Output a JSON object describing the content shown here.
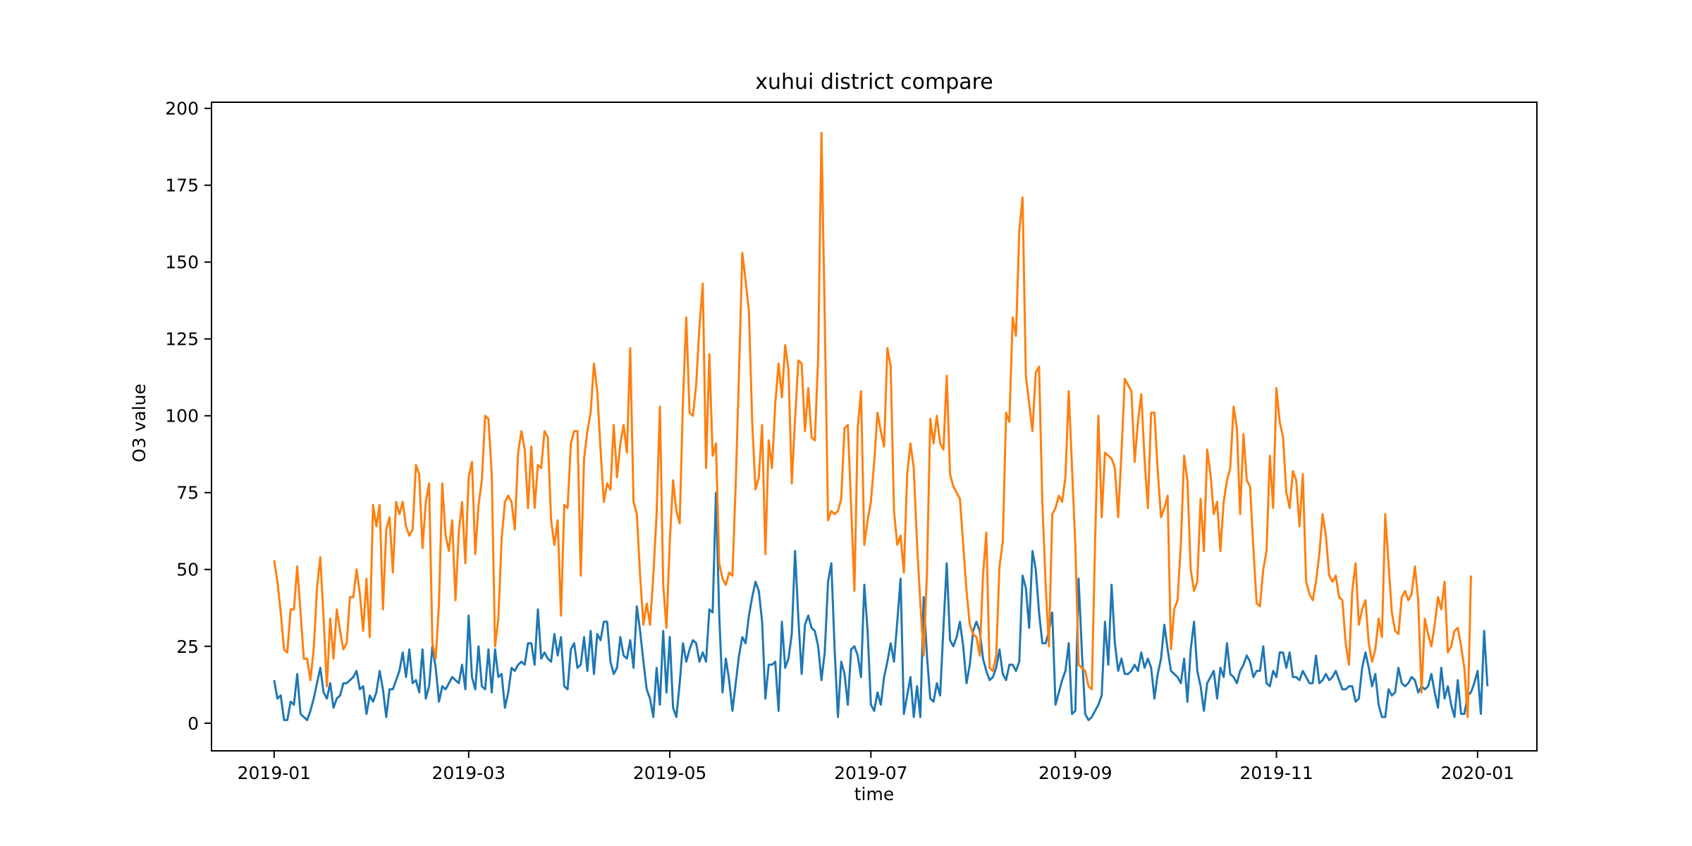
{
  "chart_data": {
    "type": "line",
    "title": "xuhui district compare",
    "xlabel": "time",
    "ylabel": "O3 value",
    "xlim": [
      "2018-12-13",
      "2020-01-19"
    ],
    "ylim": [
      -9,
      202
    ],
    "grid": false,
    "legend": "none",
    "x_ticks": [
      "2019-01",
      "2019-03",
      "2019-05",
      "2019-07",
      "2019-09",
      "2019-11",
      "2020-01"
    ],
    "y_ticks": [
      0,
      25,
      50,
      75,
      100,
      125,
      150,
      175,
      200
    ],
    "series_start_date": "2019-01-01",
    "series_step": "1 day",
    "series": [
      {
        "color": "#1f77b4",
        "values": [
          14,
          8,
          9,
          1,
          1,
          7,
          6,
          16,
          3,
          2,
          1,
          4,
          8,
          13,
          18,
          10,
          8,
          13,
          5,
          8,
          9,
          13,
          13,
          14,
          15,
          17,
          11,
          12,
          3,
          9,
          7,
          10,
          17,
          11,
          2,
          11,
          11,
          14,
          17,
          23,
          15,
          24,
          13,
          14,
          10,
          24,
          8,
          12,
          25,
          18,
          7,
          12,
          11,
          13,
          15,
          14,
          13,
          19,
          11,
          35,
          15,
          11,
          25,
          12,
          11,
          24,
          10,
          24,
          15,
          16,
          5,
          10,
          18,
          17,
          19,
          20,
          19,
          26,
          26,
          19,
          37,
          21,
          23,
          21,
          20,
          29,
          22,
          28,
          12,
          11,
          24,
          26,
          18,
          19,
          28,
          17,
          30,
          16,
          29,
          27,
          33,
          33,
          20,
          16,
          18,
          28,
          22,
          21,
          27,
          18,
          38,
          30,
          20,
          11,
          8,
          2,
          18,
          6,
          30,
          10,
          28,
          5,
          2,
          13,
          26,
          20,
          24,
          27,
          26,
          20,
          23,
          20,
          37,
          36,
          75,
          35,
          10,
          21,
          14,
          4,
          13,
          22,
          28,
          26,
          35,
          41,
          46,
          43,
          33,
          8,
          19,
          19,
          20,
          4,
          33,
          18,
          21,
          29,
          56,
          34,
          16,
          32,
          35,
          31,
          30,
          25,
          14,
          23,
          46,
          52,
          24,
          2,
          20,
          16,
          6,
          24,
          25,
          22,
          15,
          45,
          30,
          6,
          4,
          10,
          6,
          15,
          20,
          26,
          20,
          33,
          47,
          3,
          9,
          15,
          2,
          12,
          2,
          41,
          22,
          8,
          7,
          13,
          9,
          31,
          52,
          27,
          25,
          28,
          33,
          25,
          13,
          19,
          30,
          33,
          30,
          21,
          17,
          14,
          15,
          18,
          24,
          16,
          14,
          19,
          19,
          17,
          20,
          48,
          44,
          31,
          56,
          50,
          36,
          26,
          26,
          30,
          36,
          6,
          10,
          14,
          17,
          26,
          3,
          4,
          47,
          23,
          3,
          1,
          2,
          4,
          6,
          9,
          33,
          19,
          45,
          26,
          17,
          21,
          16,
          16,
          17,
          19,
          17,
          23,
          18,
          21,
          18,
          8,
          16,
          21,
          32,
          24,
          17,
          16,
          15,
          13,
          21,
          7,
          24,
          33,
          17,
          12,
          4,
          13,
          15,
          17,
          8,
          18,
          15,
          26,
          16,
          15,
          13,
          17,
          19,
          22,
          20,
          15,
          17,
          17,
          25,
          13,
          12,
          17,
          15,
          23,
          23,
          18,
          23,
          15,
          15,
          14,
          17,
          15,
          13,
          13,
          22,
          13,
          14,
          16,
          14,
          15,
          17,
          14,
          11,
          11,
          12,
          12,
          7,
          8,
          18,
          23,
          18,
          12,
          16,
          6,
          2,
          2,
          11,
          9,
          10,
          18,
          13,
          12,
          13,
          15,
          14,
          10,
          12,
          11,
          12,
          16,
          10,
          5,
          18,
          8,
          12,
          6,
          2,
          14,
          3,
          3,
          9,
          10,
          13,
          17,
          3,
          30,
          12
        ]
      },
      {
        "color": "#ff7f0e",
        "values": [
          53,
          46,
          36,
          24,
          23,
          37,
          37,
          51,
          36,
          21,
          21,
          14,
          24,
          44,
          54,
          34,
          12,
          34,
          21,
          37,
          30,
          24,
          26,
          41,
          41,
          50,
          42,
          30,
          47,
          28,
          71,
          64,
          71,
          37,
          63,
          67,
          49,
          72,
          68,
          72,
          64,
          61,
          63,
          84,
          81,
          57,
          72,
          78,
          26,
          21,
          39,
          78,
          61,
          56,
          66,
          40,
          62,
          72,
          52,
          80,
          85,
          55,
          71,
          79,
          100,
          99,
          81,
          25,
          34,
          60,
          72,
          74,
          72,
          63,
          88,
          95,
          89,
          70,
          90,
          70,
          84,
          83,
          95,
          93,
          66,
          58,
          66,
          35,
          71,
          70,
          91,
          95,
          95,
          48,
          86,
          95,
          101,
          117,
          108,
          89,
          72,
          78,
          76,
          97,
          80,
          91,
          97,
          88,
          122,
          72,
          68,
          48,
          32,
          39,
          32,
          48,
          68,
          103,
          45,
          31,
          59,
          79,
          69,
          65,
          105,
          132,
          101,
          100,
          110,
          129,
          143,
          83,
          120,
          87,
          91,
          52,
          47,
          45,
          49,
          48,
          78,
          114,
          153,
          144,
          134,
          98,
          76,
          80,
          97,
          55,
          92,
          83,
          104,
          117,
          106,
          123,
          115,
          78,
          99,
          118,
          117,
          95,
          109,
          93,
          92,
          119,
          192,
          132,
          66,
          69,
          68,
          69,
          73,
          96,
          97,
          71,
          43,
          96,
          108,
          58,
          66,
          72,
          85,
          101,
          95,
          90,
          122,
          116,
          69,
          58,
          61,
          49,
          81,
          91,
          83,
          58,
          39,
          22,
          49,
          99,
          91,
          100,
          91,
          89,
          113,
          81,
          77,
          75,
          73,
          58,
          43,
          32,
          29,
          28,
          22,
          48,
          62,
          18,
          17,
          22,
          51,
          59,
          101,
          98,
          132,
          126,
          160,
          171,
          113,
          104,
          95,
          114,
          116,
          72,
          45,
          25,
          68,
          70,
          74,
          72,
          80,
          108,
          83,
          58,
          19,
          18,
          17,
          12,
          11,
          59,
          100,
          67,
          88,
          87,
          86,
          83,
          67,
          88,
          112,
          110,
          108,
          85,
          98,
          107,
          86,
          70,
          101,
          101,
          82,
          67,
          70,
          74,
          24,
          37,
          40,
          58,
          87,
          79,
          50,
          43,
          46,
          73,
          56,
          89,
          81,
          68,
          72,
          56,
          72,
          79,
          83,
          103,
          96,
          68,
          94,
          79,
          77,
          57,
          39,
          38,
          50,
          56,
          87,
          70,
          109,
          98,
          93,
          75,
          70,
          82,
          79,
          64,
          81,
          46,
          42,
          40,
          46,
          55,
          68,
          61,
          48,
          46,
          48,
          41,
          40,
          26,
          19,
          43,
          52,
          32,
          37,
          40,
          26,
          20,
          24,
          34,
          28,
          68,
          52,
          36,
          30,
          29,
          41,
          43,
          40,
          42,
          51,
          40,
          10,
          34,
          29,
          25,
          32,
          41,
          37,
          46,
          23,
          25,
          30,
          31,
          25,
          18,
          2,
          48
        ]
      }
    ]
  }
}
